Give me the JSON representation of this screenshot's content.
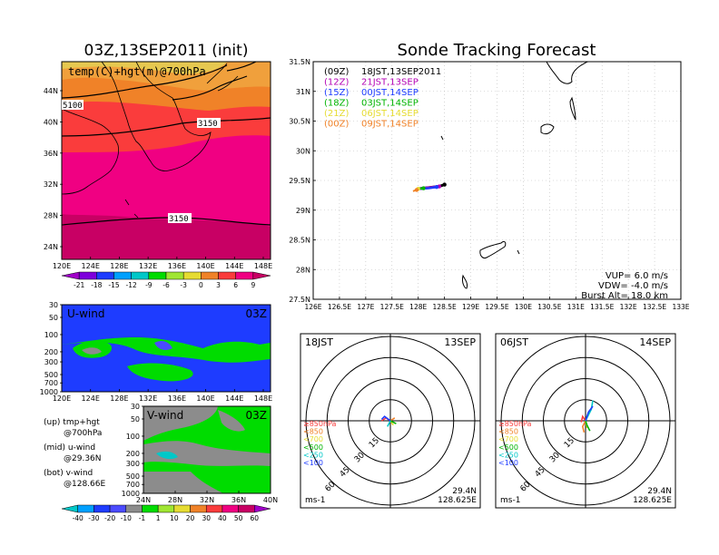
{
  "left_title": "03Z,13SEP2011 (init)",
  "right_title": "Sonde Tracking Forecast",
  "map_panel": {
    "label": "temp(C)+hgt(m)@700hPa",
    "contour_labels": [
      "5100",
      "3150",
      "3150"
    ],
    "xticks": [
      "120E",
      "124E",
      "128E",
      "132E",
      "136E",
      "140E",
      "144E",
      "148E"
    ],
    "yticks": [
      "44N",
      "40N",
      "36N",
      "32N",
      "28N",
      "24N"
    ]
  },
  "temp_colorbar": {
    "labels": [
      "-21",
      "-18",
      "-15",
      "-12",
      "-9",
      "-6",
      "-3",
      "0",
      "3",
      "6",
      "9"
    ],
    "colors": [
      "#a000c8",
      "#7d00dc",
      "#1e3cff",
      "#00a0ff",
      "#00c8c8",
      "#00dc00",
      "#a0e632",
      "#e6dc32",
      "#f08228",
      "#fa3c3c",
      "#f00082",
      "#c80064"
    ]
  },
  "u_panel": {
    "label": "U-wind",
    "time": "03Z",
    "yticks": [
      "30",
      "50",
      "100",
      "200",
      "300",
      "500",
      "700",
      "1000"
    ],
    "xticks": [
      "120E",
      "124E",
      "128E",
      "132E",
      "136E",
      "140E",
      "144E",
      "148E"
    ]
  },
  "v_panel": {
    "label": "V-wind",
    "time": "03Z",
    "yticks": [
      "30",
      "50",
      "100",
      "200",
      "300",
      "500",
      "700",
      "1000"
    ],
    "xticks": [
      "24N",
      "28N",
      "32N",
      "36N",
      "40N"
    ]
  },
  "wind_colorbar": {
    "labels": [
      "-40",
      "-30",
      "-20",
      "-10",
      "-1",
      "1",
      "10",
      "20",
      "30",
      "40",
      "50",
      "60"
    ],
    "colors": [
      "#00c8c8",
      "#00a0ff",
      "#1e3cff",
      "#4b4bff",
      "#8c8c8c",
      "#00dc00",
      "#a0e632",
      "#e6dc32",
      "#f08228",
      "#fa3c3c",
      "#f00082",
      "#c80064",
      "#a000c8"
    ]
  },
  "notes": [
    {
      "title": "(up) tmp+hgt",
      "sub": "@700hPa"
    },
    {
      "title": "(mid) u-wind",
      "sub": "@29.36N"
    },
    {
      "title": "(bot) v-wind",
      "sub": "@128.66E"
    }
  ],
  "track": {
    "legend": [
      {
        "utc": "(09Z)",
        "jst": "18JST,13SEP2011",
        "color": "#000000"
      },
      {
        "utc": "(12Z)",
        "jst": "21JST,13SEP",
        "color": "#b400b4"
      },
      {
        "utc": "(15Z)",
        "jst": "00JST,14SEP",
        "color": "#1e3cff"
      },
      {
        "utc": "(18Z)",
        "jst": "03JST,14SEP",
        "color": "#00b400"
      },
      {
        "utc": "(21Z)",
        "jst": "06JST,14SEP",
        "color": "#e6dc32"
      },
      {
        "utc": "(00Z)",
        "jst": "09JST,14SEP",
        "color": "#f08228"
      }
    ],
    "xticks": [
      "126E",
      "126.5E",
      "127E",
      "127.5E",
      "128E",
      "128.5E",
      "129E",
      "129.5E",
      "130E",
      "130.5E",
      "131E",
      "131.5E",
      "132E",
      "132.5E",
      "133E"
    ],
    "yticks": [
      "31.5N",
      "31N",
      "30.5N",
      "30N",
      "29.5N",
      "29N",
      "28.5N",
      "28N",
      "27.5N"
    ],
    "info": [
      "VUP= 6.0 m/s",
      "VDW= -4.0 m/s",
      "Burst Alt= 18.0 km"
    ]
  },
  "chart_data": [
    {
      "type": "line",
      "title": "Sonde Tracking Forecast",
      "xlim": [
        126,
        133
      ],
      "ylim": [
        27.5,
        31.5
      ],
      "series": [
        {
          "name": "(09Z) 18JST,13SEP2011",
          "x": [
            128.0,
            128.2,
            128.4,
            128.5
          ],
          "y": [
            29.36,
            29.38,
            29.4,
            29.43
          ]
        },
        {
          "name": "(12Z) 21JST,13SEP",
          "x": [
            128.0,
            128.2,
            128.4
          ],
          "y": [
            29.36,
            29.38,
            29.4
          ]
        },
        {
          "name": "(15Z) 00JST,14SEP",
          "x": [
            128.0,
            128.2,
            128.35
          ],
          "y": [
            29.36,
            29.37,
            29.39
          ]
        },
        {
          "name": "(18Z) 03JST,14SEP",
          "x": [
            128.0,
            128.1
          ],
          "y": [
            29.36,
            29.37
          ]
        },
        {
          "name": "(21Z) 06JST,14SEP",
          "x": [
            127.95,
            128.0
          ],
          "y": [
            29.34,
            29.36
          ]
        },
        {
          "name": "(00Z) 09JST,14SEP",
          "x": [
            127.9,
            127.97
          ],
          "y": [
            29.32,
            29.34
          ]
        }
      ]
    },
    {
      "type": "line",
      "title": "18JST 13SEP",
      "series": [
        {
          "name": "≥850hPa",
          "color": "#fa3c3c",
          "u": [
            0,
            -1.5,
            -3
          ],
          "v": [
            0,
            1,
            0
          ]
        },
        {
          "name": "<850",
          "color": "#f08228",
          "u": [
            0,
            1.5
          ],
          "v": [
            0,
            1
          ]
        },
        {
          "name": "<700",
          "color": "#e6dc32",
          "u": [
            0,
            1
          ],
          "v": [
            0,
            -1.5
          ]
        },
        {
          "name": "<500",
          "color": "#00b400",
          "u": [
            0,
            2
          ],
          "v": [
            0,
            -1
          ]
        },
        {
          "name": "<250",
          "color": "#00c8c8",
          "u": [
            0,
            -1
          ],
          "v": [
            0,
            -2
          ]
        },
        {
          "name": "<100",
          "color": "#1e3cff",
          "u": [
            0,
            -2,
            -3
          ],
          "v": [
            0,
            1.5,
            0.5
          ]
        }
      ]
    },
    {
      "type": "line",
      "title": "06JST 14SEP",
      "series": [
        {
          "name": "≥850hPa",
          "color": "#fa3c3c",
          "u": [
            0,
            -1,
            -1.5
          ],
          "v": [
            0,
            1.5,
            -0.5
          ]
        },
        {
          "name": "<850",
          "color": "#f08228",
          "u": [
            0,
            -1,
            -0.5
          ],
          "v": [
            0,
            -2,
            -4
          ]
        },
        {
          "name": "<700",
          "color": "#e6dc32",
          "u": [
            0,
            0.5
          ],
          "v": [
            0,
            -2.5
          ]
        },
        {
          "name": "<500",
          "color": "#00b400",
          "u": [
            0,
            0.5,
            1.5
          ],
          "v": [
            0,
            -1.5,
            -3.5
          ]
        },
        {
          "name": "<250",
          "color": "#00c8c8",
          "u": [
            0,
            2,
            2.5
          ],
          "v": [
            0,
            4,
            7
          ]
        },
        {
          "name": "<100",
          "color": "#1e3cff",
          "u": [
            0,
            1,
            2.5
          ],
          "v": [
            0,
            3,
            5
          ]
        }
      ]
    }
  ],
  "hodo": [
    {
      "time": "18JST",
      "date": "13SEP",
      "lat": "29.4N",
      "lon": "128.625E",
      "unit": "ms-1",
      "rings": [
        "15",
        "30",
        "45",
        "60"
      ]
    },
    {
      "time": "06JST",
      "date": "14SEP",
      "lat": "29.4N",
      "lon": "128.625E",
      "unit": "ms-1",
      "rings": [
        "15",
        "30",
        "45",
        "60"
      ]
    }
  ],
  "hodo_legend": [
    {
      "label": "≥850hPa",
      "color": "#fa3c3c"
    },
    {
      "label": "<850",
      "color": "#f08228"
    },
    {
      "label": "<700",
      "color": "#e6dc32"
    },
    {
      "label": "<500",
      "color": "#00b400"
    },
    {
      "label": "<250",
      "color": "#00c8c8"
    },
    {
      "label": "<100",
      "color": "#1e3cff"
    }
  ]
}
